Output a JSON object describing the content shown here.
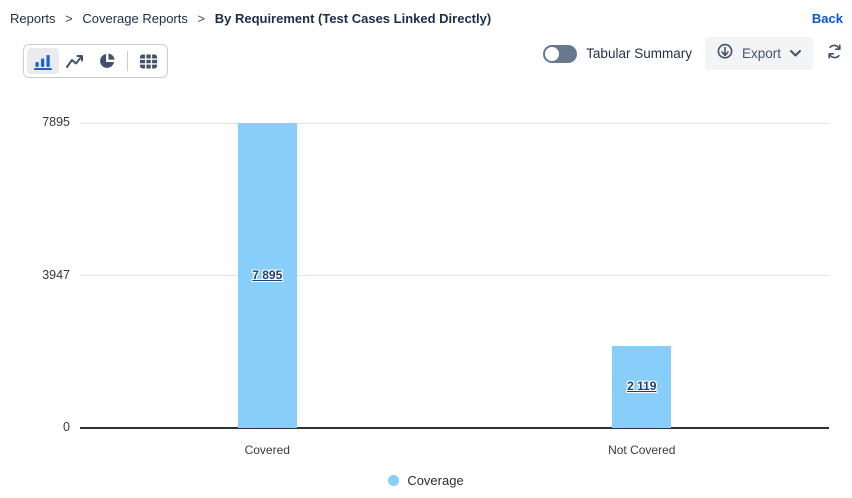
{
  "breadcrumb": {
    "items": [
      "Reports",
      "Coverage Reports"
    ],
    "current": "By Requirement (Test Cases Linked Directly)",
    "separator": ">"
  },
  "back_label": "Back",
  "toolbar": {
    "chart_types": [
      {
        "name": "bar-chart",
        "selected": true
      },
      {
        "name": "line-chart",
        "selected": false
      },
      {
        "name": "pie-chart",
        "selected": false
      },
      {
        "name": "table",
        "selected": false
      }
    ],
    "tabular_summary_label": "Tabular Summary",
    "toggle_state": "off",
    "export_label": "Export"
  },
  "colors": {
    "bar": "#87CEFA",
    "selected_icon": "#1d63c8",
    "icon": "#42526e",
    "back_link": "#0757d5"
  },
  "chart_data": {
    "type": "bar",
    "title": "",
    "categories": [
      "Covered",
      "Not Covered"
    ],
    "values": [
      7895,
      2119
    ],
    "value_labels": [
      "7 895",
      "2 119"
    ],
    "series_name": "Coverage",
    "y_ticks": [
      0,
      3947,
      7895
    ],
    "ylim": [
      0,
      7895
    ],
    "xlabel": "",
    "ylabel": "",
    "grid": true,
    "legend_position": "bottom",
    "bar_color": "#87CEFA"
  }
}
